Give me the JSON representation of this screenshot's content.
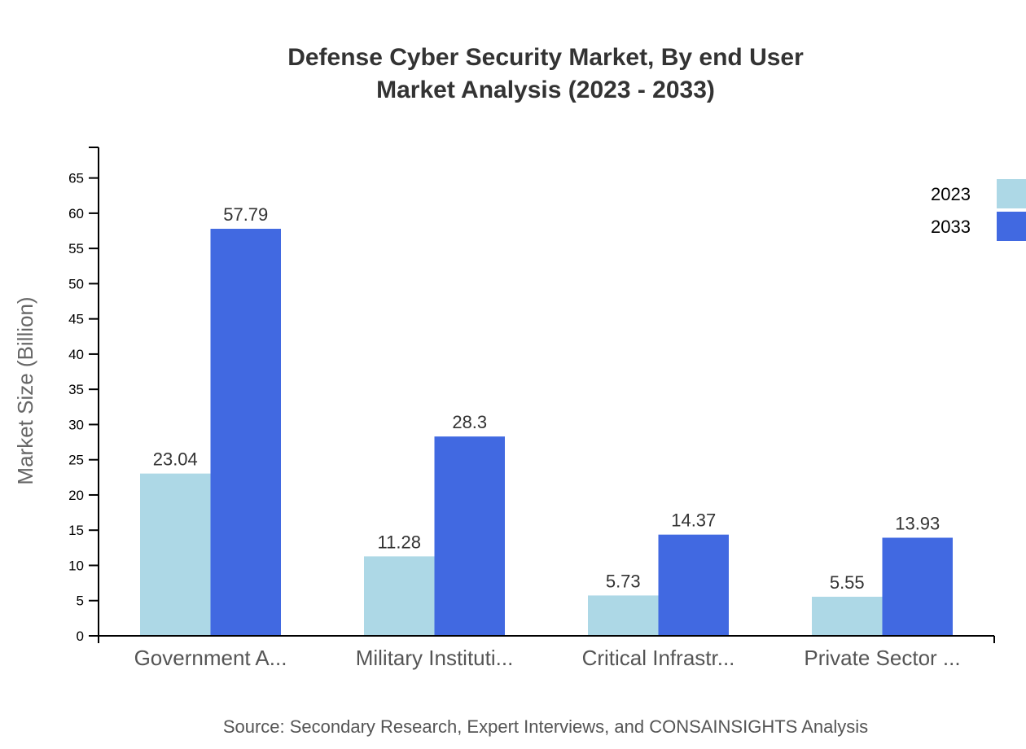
{
  "chart_data": {
    "type": "bar",
    "title": [
      "Defense Cyber Security Market, By end User",
      "Market Analysis (2023 - 2033)"
    ],
    "xlabel": "",
    "ylabel": "Market Size (Billion)",
    "categories": [
      "Government A...",
      "Military Instituti...",
      "Critical Infrastr...",
      "Private Sector ..."
    ],
    "series": [
      {
        "name": "2023",
        "color": "#ADD8E6",
        "values": [
          23.04,
          11.28,
          5.73,
          5.55
        ]
      },
      {
        "name": "2033",
        "color": "#4169E1",
        "values": [
          57.79,
          28.3,
          14.37,
          13.93
        ]
      }
    ],
    "ylim": [
      0,
      69.35
    ],
    "yticks": [
      0,
      5,
      10,
      15,
      20,
      25,
      30,
      35,
      40,
      45,
      50,
      55,
      60,
      65
    ],
    "grid": false,
    "legend_position": "top-right",
    "source": "Source: Secondary Research, Expert Interviews, and CONSAINSIGHTS Analysis"
  }
}
